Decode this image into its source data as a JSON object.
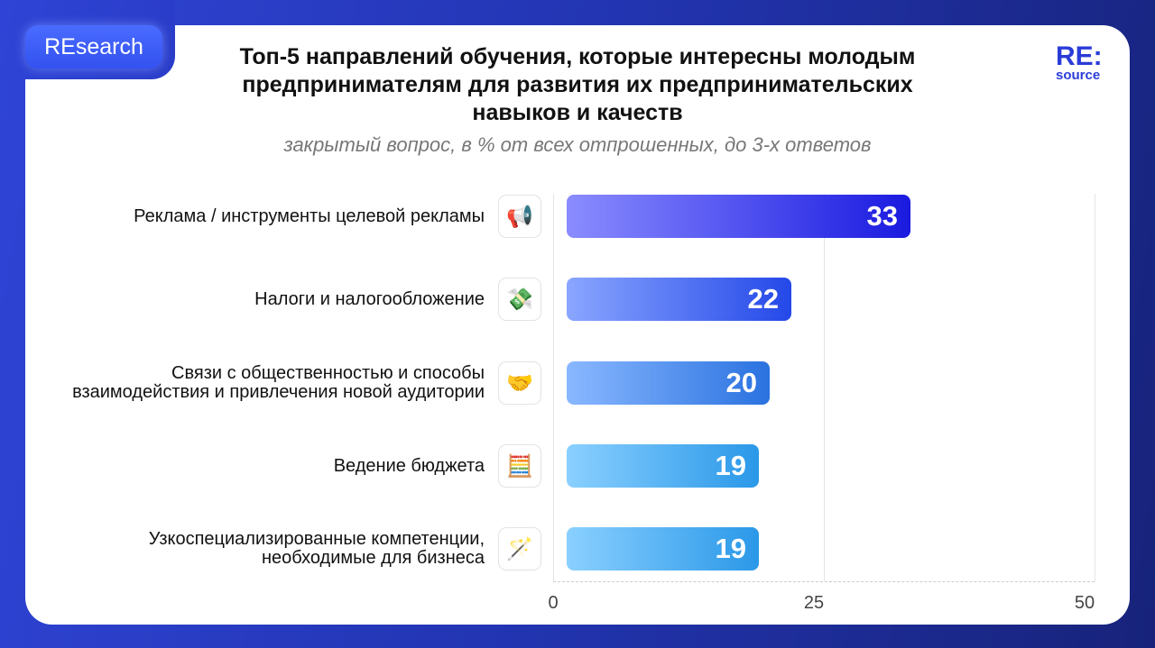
{
  "badge": "REsearch",
  "logo": {
    "main": "RE:",
    "sub": "source"
  },
  "chart_data": {
    "type": "bar",
    "orientation": "horizontal",
    "title": "Топ-5 направлений обучения, которые интересны молодым предпринимателям для развития их предпринимательских навыков и качеств",
    "subtitle": "закрытый вопрос, в % от всех отпрошенных, до 3-х ответов",
    "categories": [
      "Реклама / инструменты целевой рекламы",
      "Налоги и налогообложение",
      "Связи с общественностью и способы взаимодействия и привлечения новой аудитории",
      "Ведение бюджета",
      "Узкоспециализированные компетенции, необходимые для бизнеса"
    ],
    "values": [
      33,
      22,
      20,
      19,
      19
    ],
    "icons": [
      {
        "name": "megaphone-icon",
        "glyph": "📢"
      },
      {
        "name": "money-with-wings-icon",
        "glyph": "💸"
      },
      {
        "name": "handshake-icon",
        "glyph": "🤝"
      },
      {
        "name": "abacus-icon",
        "glyph": "🧮"
      },
      {
        "name": "magic-wand-icon",
        "glyph": "🪄"
      }
    ],
    "colors": [
      [
        "#8a8cff",
        "#1a1ae0"
      ],
      [
        "#8aa6ff",
        "#2448e8"
      ],
      [
        "#8ab8ff",
        "#2a72e0"
      ],
      [
        "#8ad0ff",
        "#2a98e8"
      ],
      [
        "#8ad0ff",
        "#2a98e8"
      ]
    ],
    "xlim": [
      0,
      50
    ],
    "xticks": [
      "0",
      "25",
      "50"
    ],
    "grid": true
  }
}
